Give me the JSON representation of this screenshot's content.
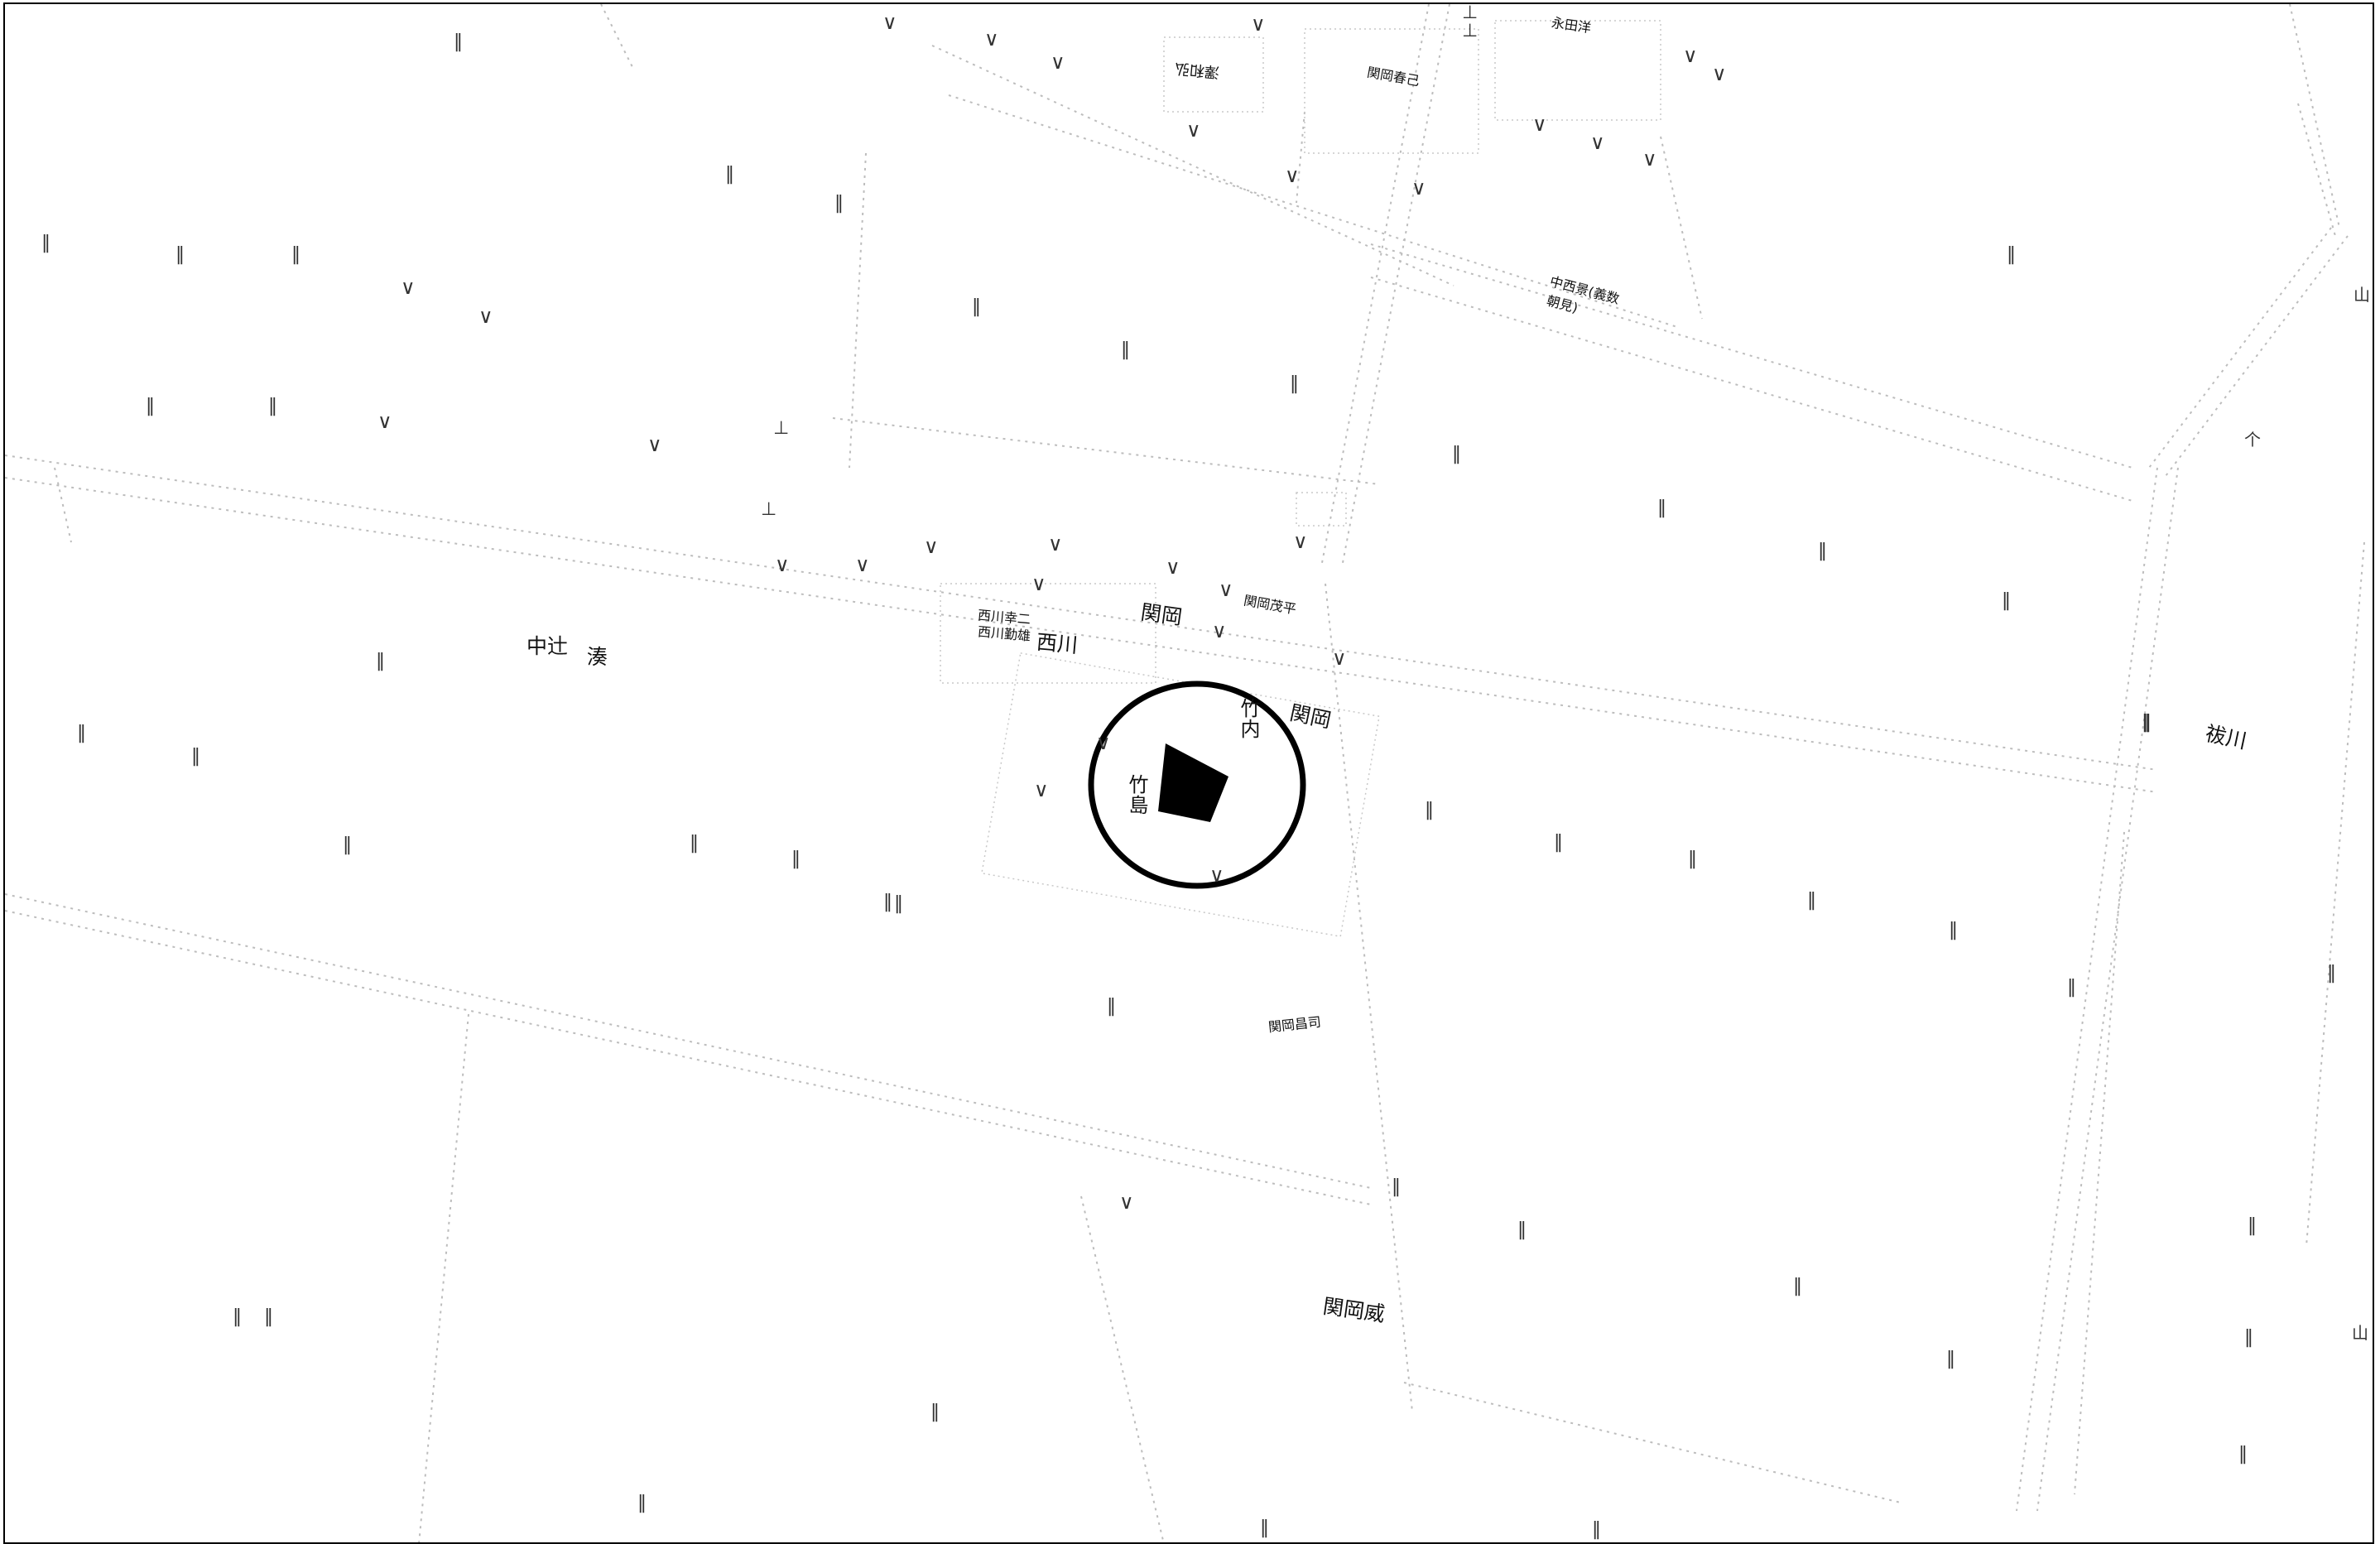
{
  "map": {
    "labels": {
      "nakatsuji": "中辻",
      "minato": "湊",
      "sekioka_1": "関岡",
      "sekioka_2": "関岡",
      "nishikawa": "西川",
      "nishikawa_persons": "西川幸二",
      "nishikawa_persons_2": "西川勤雄",
      "sekioka_shigehira": "関岡茂平",
      "takeuchi": "竹内",
      "takeshima": "竹島",
      "haraikawa": "祓川",
      "sekioka_takeshi": "関岡威",
      "sekioka_nori": "関岡昌司",
      "sawa_kazuhiro": "澤和弘",
      "sekioka_haruki": "関岡春己",
      "nakanishi_kageo": "中西景(義数",
      "nakanishi_kageo_2": "朝見)",
      "top_right_name": "永田洋"
    },
    "symbols": {
      "paddy": "‖",
      "field": "∨",
      "shrine": "⊥",
      "orchard": "个",
      "mountain": "山"
    },
    "target": {
      "fill": "#000000",
      "ring": "#000000"
    }
  }
}
